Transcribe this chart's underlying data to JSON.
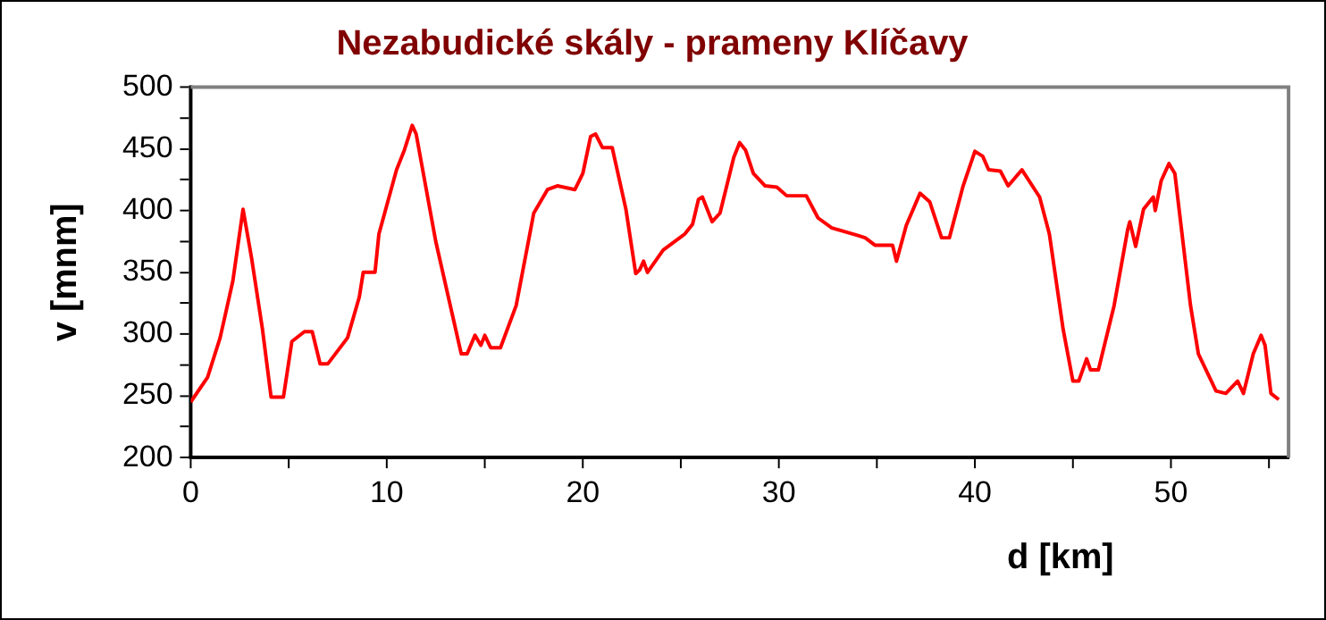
{
  "chart_data": {
    "type": "line",
    "title": "Nezabudické skály - prameny Klíčavy",
    "xlabel": "d [km]",
    "ylabel": "v [mnm]",
    "xlim": [
      0,
      56
    ],
    "ylim": [
      200,
      500
    ],
    "xticks": [
      0,
      {
        "value": 5,
        "label": null
      },
      10,
      {
        "value": 15,
        "label": null
      },
      20,
      {
        "value": 25,
        "label": null
      },
      30,
      {
        "value": 35,
        "label": null
      },
      40,
      {
        "value": 45,
        "label": null
      },
      50,
      {
        "value": 55,
        "label": null
      }
    ],
    "yticks": [
      200,
      {
        "value": 225,
        "label": null
      },
      250,
      {
        "value": 275,
        "label": null
      },
      300,
      {
        "value": 325,
        "label": null
      },
      350,
      {
        "value": 375,
        "label": null
      },
      400,
      {
        "value": 425,
        "label": null
      },
      450,
      {
        "value": 475,
        "label": null
      },
      500
    ],
    "grid": false,
    "legend": false,
    "marker": "none",
    "line_style": "solid",
    "x": [
      0,
      0.86,
      1.5,
      2.15,
      2.67,
      3.1,
      3.66,
      4.1,
      4.73,
      5.16,
      5.8,
      6.2,
      6.6,
      7.0,
      8.0,
      8.6,
      8.8,
      9.4,
      9.6,
      10.5,
      10.9,
      11.3,
      11.5,
      12.5,
      13.8,
      14.1,
      14.5,
      14.8,
      15.0,
      15.3,
      15.8,
      16.6,
      17.5,
      18.2,
      18.7,
      19.6,
      20.0,
      20.4,
      20.65,
      21.0,
      21.5,
      22.2,
      22.7,
      22.9,
      23.1,
      23.3,
      24.1,
      25.2,
      25.6,
      25.9,
      26.1,
      26.6,
      27.0,
      27.7,
      28.0,
      28.3,
      28.7,
      29.3,
      29.9,
      30.4,
      31.4,
      32.0,
      32.7,
      34.0,
      34.4,
      34.9,
      35.8,
      36.0,
      36.5,
      37.2,
      37.7,
      38.3,
      38.7,
      39.4,
      40.0,
      40.4,
      40.7,
      41.3,
      41.7,
      42.4,
      43.3,
      43.8,
      44.5,
      45.0,
      45.3,
      45.7,
      45.9,
      46.3,
      47.1,
      47.8,
      47.9,
      48.2,
      48.6,
      49.1,
      49.2,
      49.5,
      49.9,
      50.2,
      51.0,
      51.4,
      52.3,
      52.8,
      53.4,
      53.7,
      54.2,
      54.6,
      54.8,
      55.1,
      55.5
    ],
    "series": [
      {
        "color": "#ff0000",
        "values": [
          245,
          265,
          297,
          343,
          401,
          362,
          304,
          249,
          249,
          294,
          302,
          302,
          276,
          276,
          297,
          330,
          350,
          350,
          381,
          433,
          449,
          469,
          462,
          375,
          284,
          284,
          299,
          291,
          299,
          289,
          289,
          323,
          398,
          417,
          420,
          417,
          430,
          460,
          462,
          451,
          451,
          401,
          349,
          352,
          359,
          350,
          368,
          381,
          389,
          409,
          411,
          391,
          398,
          443,
          455,
          449,
          430,
          420,
          419,
          412,
          412,
          394,
          386,
          380,
          378,
          372,
          372,
          359,
          388,
          414,
          407,
          378,
          378,
          420,
          448,
          444,
          433,
          432,
          420,
          433,
          411,
          381,
          304,
          262,
          262,
          280,
          271,
          271,
          323,
          385,
          391,
          371,
          401,
          411,
          400,
          424,
          438,
          430,
          323,
          284,
          254,
          252,
          262,
          252,
          284,
          299,
          291,
          252,
          247
        ]
      }
    ]
  }
}
